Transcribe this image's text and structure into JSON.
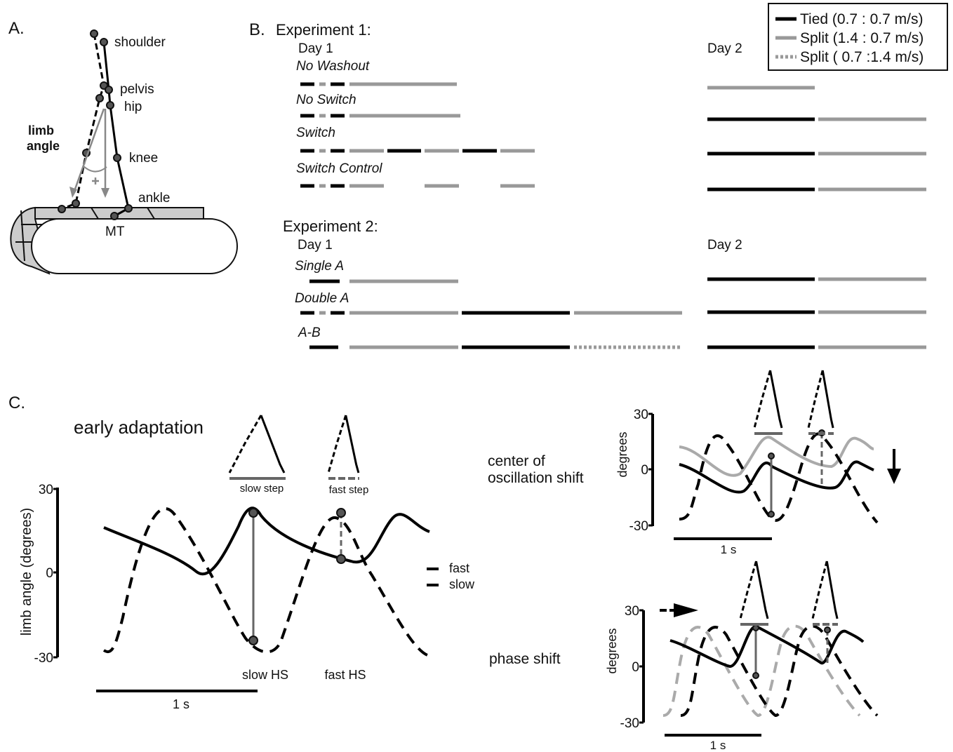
{
  "panel_a": {
    "label": "A.",
    "joints": [
      "shoulder",
      "pelvis",
      "hip",
      "knee",
      "ankle",
      "MT"
    ],
    "angle_label": [
      "limb",
      "angle"
    ]
  },
  "panel_b": {
    "label": "B.",
    "legend": [
      "Tied (0.7 : 0.7 m/s)",
      "Split (1.4 : 0.7 m/s)",
      "Split ( 0.7 :1.4 m/s)"
    ],
    "experiment1": {
      "title": "Experiment 1:",
      "day1": "Day 1",
      "day2": "Day 2",
      "groups": [
        "No Washout",
        "No Switch",
        "Switch",
        "Switch Control"
      ]
    },
    "experiment2": {
      "title": "Experiment 2:",
      "day1": "Day 1",
      "day2": "Day 2",
      "groups": [
        "Single A",
        "Double A",
        "A-B"
      ]
    }
  },
  "panel_c": {
    "label": "C.",
    "early": {
      "title": "early adaptation",
      "y_label": "limb angle (degrees)",
      "yticks": [
        30,
        0,
        -30
      ],
      "scale": "1 s",
      "steps": [
        "slow step",
        "fast step"
      ],
      "events": [
        "slow HS",
        "fast HS"
      ],
      "legend": [
        "fast",
        "slow"
      ]
    },
    "center": {
      "title": [
        "center of",
        "oscillation shift"
      ],
      "y_label": "degrees",
      "yticks": [
        30,
        0,
        -30
      ],
      "scale": "1 s"
    },
    "phase": {
      "title": "phase shift",
      "y_label": "degrees",
      "yticks": [
        30,
        0,
        -30
      ],
      "scale": "1 s"
    }
  }
}
